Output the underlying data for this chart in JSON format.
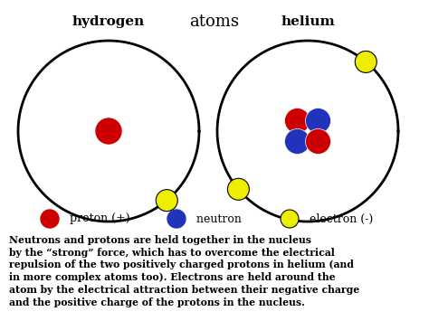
{
  "title": "atoms",
  "background_color": "#ffffff",
  "hydrogen_label": "hydrogen",
  "helium_label": "helium",
  "proton_color": "#cc0000",
  "neutron_color": "#2233bb",
  "electron_color": "#eeee00",
  "body_text": "Neutrons and protons are held together in the nucleus\nby the “strong” force, which has to overcome the electrical\nrepulsion of the two positively charged protons in helium (and\nin more complex atoms too). Electrons are held around the\natom by the electrical attraction between their negative charge\nand the positive charge of the protons in the nucleus.",
  "legend_proton_label": "  proton (+)",
  "legend_neutron_label": "  neutron",
  "legend_electron_label": "  electron (-)"
}
